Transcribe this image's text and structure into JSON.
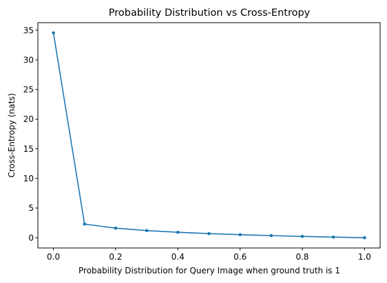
{
  "chart_data": {
    "type": "line",
    "title": "Probability Distribution vs Cross-Entropy",
    "xlabel": "Probability Distribution for Query Image when ground truth is 1",
    "ylabel": "Cross-Entropy (nats)",
    "xlim": [
      -0.05,
      1.05
    ],
    "ylim": [
      -1.73,
      36.27
    ],
    "xticks": [
      0.0,
      0.2,
      0.4,
      0.6,
      0.8,
      1.0
    ],
    "xtick_labels": [
      "0.0",
      "0.2",
      "0.4",
      "0.6",
      "0.8",
      "1.0"
    ],
    "yticks": [
      0,
      5,
      10,
      15,
      20,
      25,
      30,
      35
    ],
    "ytick_labels": [
      "0",
      "5",
      "10",
      "15",
      "20",
      "25",
      "30",
      "35"
    ],
    "grid": false,
    "series": [
      {
        "color": "#1f77b4",
        "marker": "dot",
        "x": [
          0.0,
          0.1,
          0.2,
          0.3,
          0.4,
          0.5,
          0.6,
          0.7,
          0.8,
          0.9,
          1.0
        ],
        "y": [
          34.54,
          2.303,
          1.609,
          1.204,
          0.916,
          0.693,
          0.511,
          0.357,
          0.223,
          0.105,
          0.0
        ]
      }
    ]
  }
}
